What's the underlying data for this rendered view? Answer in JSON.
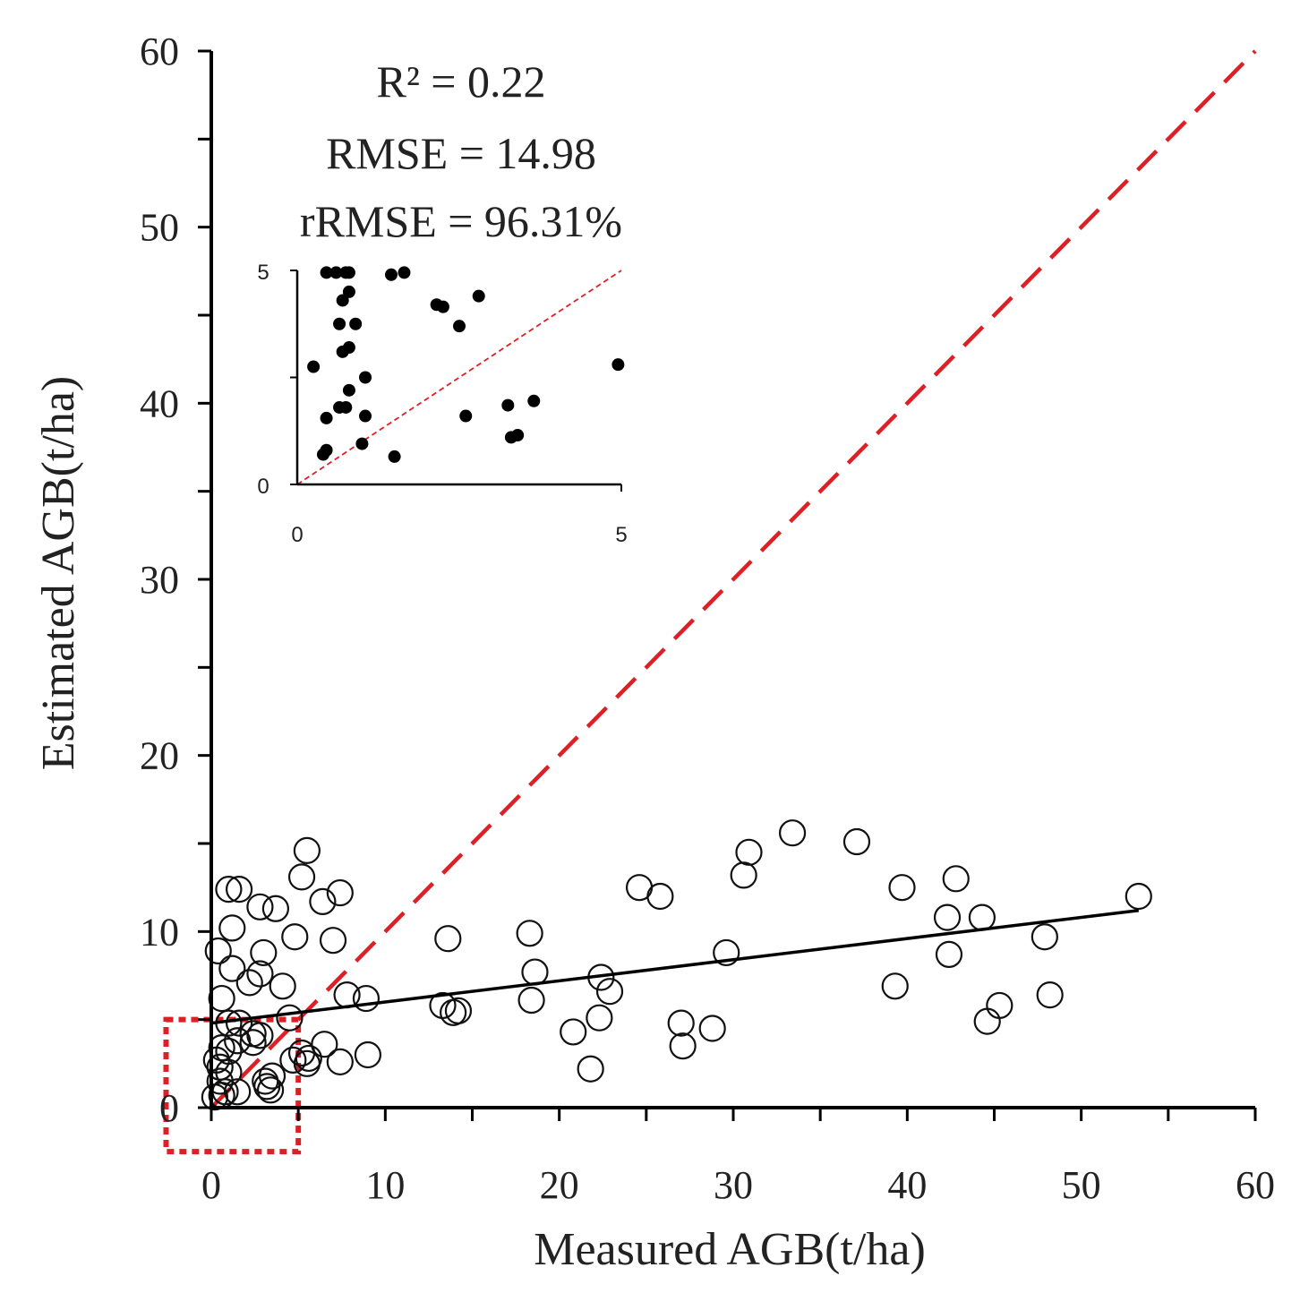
{
  "chart_data": [
    {
      "type": "scatter",
      "name": "main",
      "xlabel": "Measured AGB(t/ha)",
      "ylabel": "Estimated AGB(t/ha)",
      "xlim": [
        0,
        60
      ],
      "ylim": [
        0,
        60
      ],
      "xticks": [
        "0",
        "10",
        "20",
        "30",
        "40",
        "50",
        "60"
      ],
      "yticks": [
        "0",
        "10",
        "20",
        "30",
        "40",
        "50",
        "60"
      ],
      "annotations": {
        "r2_label": "R² = 0.22",
        "rmse_label": "RMSE = 14.98",
        "rrmse_label": "rRMSE = 96.31%"
      },
      "one_to_one_line": {
        "from": [
          0,
          0
        ],
        "to": [
          60,
          60
        ],
        "color": "#dd1f26",
        "style": "dashed"
      },
      "fit_line": {
        "from": [
          0,
          4.8
        ],
        "to": [
          53.3,
          11.2
        ],
        "color": "#000000"
      },
      "zoom_box": {
        "x": [
          -2.6,
          5.0
        ],
        "y": [
          -2.5,
          5.0
        ],
        "color": "#dd1f26",
        "style": "dotted"
      },
      "points": [
        [
          0.4,
          8.9
        ],
        [
          1.0,
          12.4
        ],
        [
          1.6,
          12.4
        ],
        [
          1.2,
          10.2
        ],
        [
          2.8,
          11.4
        ],
        [
          3.7,
          11.3
        ],
        [
          5.5,
          14.6
        ],
        [
          5.2,
          13.1
        ],
        [
          6.4,
          11.7
        ],
        [
          7.4,
          12.2
        ],
        [
          4.8,
          9.7
        ],
        [
          7.0,
          9.5
        ],
        [
          3.0,
          8.8
        ],
        [
          1.2,
          7.9
        ],
        [
          2.2,
          7.1
        ],
        [
          2.8,
          7.6
        ],
        [
          4.1,
          6.9
        ],
        [
          0.6,
          6.2
        ],
        [
          7.8,
          6.4
        ],
        [
          8.9,
          6.2
        ],
        [
          4.5,
          5.1
        ],
        [
          1.0,
          4.8
        ],
        [
          1.6,
          4.8
        ],
        [
          2.4,
          4.2
        ],
        [
          2.8,
          4.1
        ],
        [
          1.5,
          3.8
        ],
        [
          2.4,
          3.7
        ],
        [
          0.6,
          3.4
        ],
        [
          1.0,
          3.2
        ],
        [
          6.5,
          3.6
        ],
        [
          5.2,
          3.1
        ],
        [
          5.6,
          2.8
        ],
        [
          5.5,
          2.5
        ],
        [
          4.7,
          2.7
        ],
        [
          7.4,
          2.6
        ],
        [
          9.0,
          3.0
        ],
        [
          0.3,
          2.7
        ],
        [
          0.5,
          2.3
        ],
        [
          1.0,
          2.0
        ],
        [
          0.5,
          1.5
        ],
        [
          3.1,
          1.5
        ],
        [
          3.5,
          1.8
        ],
        [
          3.2,
          1.2
        ],
        [
          3.4,
          1.0
        ],
        [
          0.8,
          0.9
        ],
        [
          1.5,
          0.9
        ],
        [
          0.2,
          0.6
        ],
        [
          0.6,
          0.7
        ],
        [
          13.3,
          5.8
        ],
        [
          13.6,
          9.6
        ],
        [
          13.9,
          5.4
        ],
        [
          14.2,
          5.5
        ],
        [
          18.3,
          9.9
        ],
        [
          18.6,
          7.7
        ],
        [
          18.4,
          6.1
        ],
        [
          20.8,
          4.3
        ],
        [
          22.3,
          5.1
        ],
        [
          21.8,
          2.2
        ],
        [
          22.4,
          7.4
        ],
        [
          22.9,
          6.6
        ],
        [
          24.6,
          12.5
        ],
        [
          25.8,
          12.0
        ],
        [
          27.0,
          4.8
        ],
        [
          27.1,
          3.5
        ],
        [
          28.8,
          4.5
        ],
        [
          29.6,
          8.8
        ],
        [
          30.6,
          13.2
        ],
        [
          30.9,
          14.5
        ],
        [
          33.4,
          15.6
        ],
        [
          37.1,
          15.1
        ],
        [
          39.3,
          6.9
        ],
        [
          39.7,
          12.5
        ],
        [
          42.3,
          10.8
        ],
        [
          42.4,
          8.7
        ],
        [
          42.8,
          13.0
        ],
        [
          44.3,
          10.8
        ],
        [
          44.6,
          4.9
        ],
        [
          45.3,
          5.8
        ],
        [
          47.9,
          9.7
        ],
        [
          48.2,
          6.4
        ],
        [
          53.3,
          12.0
        ]
      ]
    },
    {
      "type": "scatter",
      "name": "inset",
      "xlim": [
        0,
        5
      ],
      "ylim": [
        0,
        5
      ],
      "xticks": [
        "0",
        "5"
      ],
      "yticks": [
        "0",
        "5"
      ],
      "one_to_one_line": {
        "from": [
          0,
          0
        ],
        "to": [
          5,
          5
        ],
        "color": "#dd1f26",
        "style": "dashed"
      },
      "points": [
        [
          0.25,
          2.75
        ],
        [
          0.45,
          4.95
        ],
        [
          0.6,
          4.95
        ],
        [
          0.75,
          4.95
        ],
        [
          0.8,
          4.95
        ],
        [
          1.45,
          4.9
        ],
        [
          1.65,
          4.95
        ],
        [
          0.7,
          4.3
        ],
        [
          0.8,
          4.5
        ],
        [
          2.15,
          4.2
        ],
        [
          2.25,
          4.15
        ],
        [
          2.8,
          4.4
        ],
        [
          2.5,
          3.7
        ],
        [
          0.65,
          3.75
        ],
        [
          0.9,
          3.75
        ],
        [
          0.7,
          3.1
        ],
        [
          0.8,
          3.2
        ],
        [
          1.05,
          2.5
        ],
        [
          0.8,
          2.2
        ],
        [
          0.45,
          1.55
        ],
        [
          0.65,
          1.8
        ],
        [
          0.75,
          1.8
        ],
        [
          1.05,
          1.6
        ],
        [
          3.25,
          1.85
        ],
        [
          3.65,
          1.95
        ],
        [
          2.6,
          1.6
        ],
        [
          3.3,
          1.1
        ],
        [
          3.4,
          1.15
        ],
        [
          1.0,
          0.95
        ],
        [
          0.4,
          0.7
        ],
        [
          0.45,
          0.8
        ],
        [
          1.5,
          0.65
        ],
        [
          4.95,
          2.8
        ]
      ]
    }
  ]
}
